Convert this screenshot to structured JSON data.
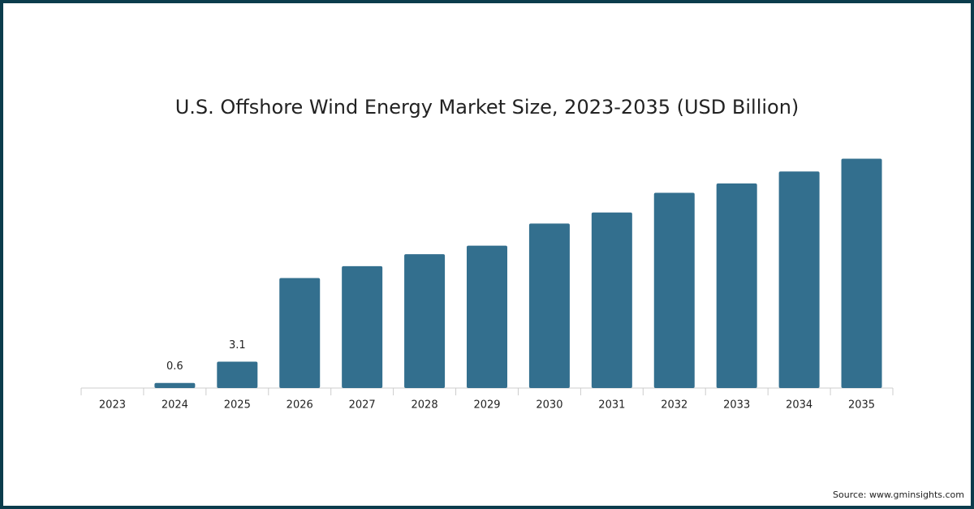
{
  "chart_data": {
    "type": "bar",
    "title": "U.S. Offshore Wind Energy Market Size, 2023-2035 (USD Billion)",
    "categories": [
      "2023",
      "2024",
      "2025",
      "2026",
      "2027",
      "2028",
      "2029",
      "2030",
      "2031",
      "2032",
      "2033",
      "2034",
      "2035"
    ],
    "values": [
      0,
      0.6,
      3.1,
      12.9,
      14.3,
      15.7,
      16.7,
      19.3,
      20.6,
      22.9,
      24.0,
      25.4,
      26.9
    ],
    "value_labels": [
      null,
      "0.6",
      "3.1",
      null,
      null,
      null,
      null,
      null,
      null,
      null,
      null,
      null,
      null
    ],
    "color": "#336f8e",
    "ylim": [
      0,
      30
    ],
    "source": "Source: www.gminsights.com"
  }
}
